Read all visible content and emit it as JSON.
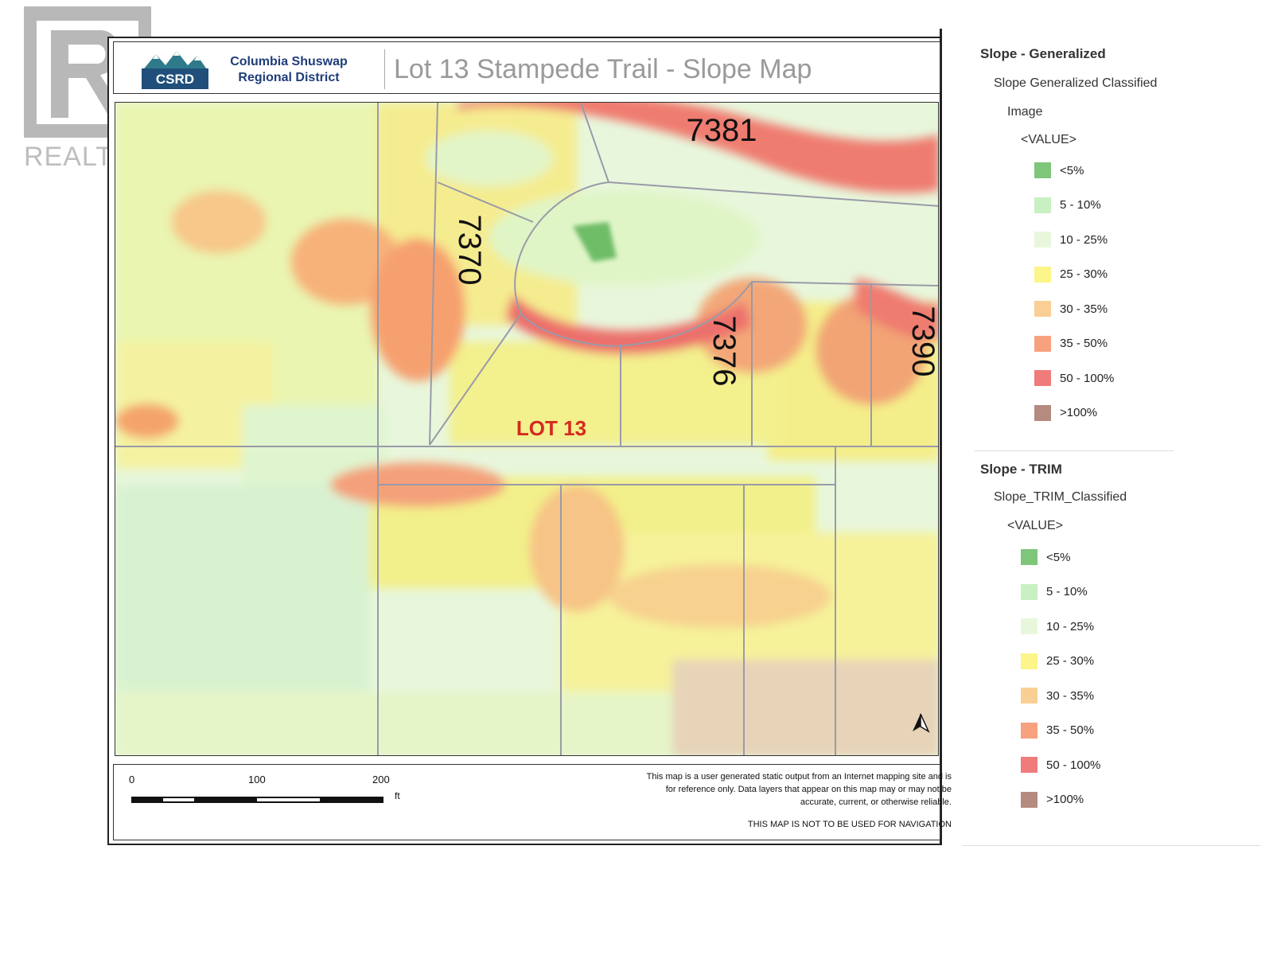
{
  "watermark": {
    "text": "REALTOR®"
  },
  "header": {
    "logo_text": "CSRD",
    "org_line1": "Columbia Shuswap",
    "org_line2": "Regional District",
    "title": "Lot 13 Stampede Trail - Slope Map"
  },
  "map": {
    "lot_labels": [
      "7381",
      "7370",
      "7376",
      "7390"
    ],
    "highlight_label": "LOT 13"
  },
  "scale": {
    "ticks": [
      "0",
      "100",
      "200"
    ],
    "unit": "ft"
  },
  "disclaimer": {
    "line1": "This map is a user generated static output from an Internet mapping site and is",
    "line2": "for reference only. Data layers that appear on this map may or may not be",
    "line3": "accurate, current, or otherwise reliable.",
    "nav_note": "THIS MAP IS NOT TO BE USED FOR NAVIGATION"
  },
  "legend_generalized": {
    "title": "Slope - Generalized",
    "layer": "Slope Generalized Classified",
    "source": "Image",
    "field": "<VALUE>",
    "items": [
      {
        "label": "<5%",
        "color": "#7dc67a"
      },
      {
        "label": "5 - 10%",
        "color": "#c9f0c2"
      },
      {
        "label": "10 - 25%",
        "color": "#e8f7dc"
      },
      {
        "label": "25 - 30%",
        "color": "#fbf58a"
      },
      {
        "label": "30 - 35%",
        "color": "#f9cf95"
      },
      {
        "label": "35 - 50%",
        "color": "#f7a17f"
      },
      {
        "label": "50 - 100%",
        "color": "#ef7b7b"
      },
      {
        "label": ">100%",
        "color": "#b58a7f"
      }
    ]
  },
  "legend_trim": {
    "title": "Slope - TRIM",
    "layer": "Slope_TRIM_Classified",
    "field": "<VALUE>",
    "items": [
      {
        "label": "<5%",
        "color": "#7dc67a"
      },
      {
        "label": "5 - 10%",
        "color": "#c9f0c2"
      },
      {
        "label": "10 - 25%",
        "color": "#e8f7dc"
      },
      {
        "label": "25 - 30%",
        "color": "#fbf58a"
      },
      {
        "label": "30 - 35%",
        "color": "#f9cf95"
      },
      {
        "label": "35 - 50%",
        "color": "#f7a17f"
      },
      {
        "label": "50 - 100%",
        "color": "#ef7b7b"
      },
      {
        "label": ">100%",
        "color": "#b58a7f"
      }
    ]
  }
}
